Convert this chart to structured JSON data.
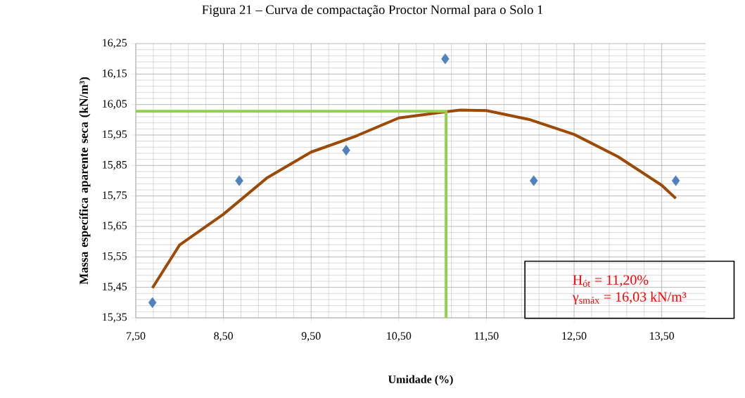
{
  "chart_data": {
    "type": "scatter",
    "title": "Figura 21 – Curva de compactação Proctor Normal para o Solo 1",
    "xlabel": "Umidade (%)",
    "ylabel": "Massa específica aparente seca (kN/m³)",
    "series": [
      {
        "type": "scatter",
        "color": "#4f81bd",
        "marker": "diamond",
        "x": [
          7.69,
          8.68,
          9.9,
          11.03,
          12.04,
          13.66
        ],
        "values": [
          15.4,
          15.8,
          15.9,
          16.2,
          15.8,
          15.8
        ]
      },
      {
        "type": "line",
        "color": "#9c4a06",
        "marker": "none",
        "x": [
          7.69,
          8.0,
          8.5,
          9.0,
          9.5,
          10.0,
          10.5,
          11.0,
          11.2,
          11.5,
          12.0,
          12.5,
          13.0,
          13.5,
          13.66
        ],
        "values": [
          15.448,
          15.589,
          15.69,
          15.81,
          15.894,
          15.945,
          16.006,
          16.025,
          16.032,
          16.03,
          16.0,
          15.952,
          15.879,
          15.785,
          15.742
        ]
      },
      {
        "type": "line",
        "color": "#92d050",
        "marker": "none",
        "x": [
          7.5,
          11.04,
          11.04
        ],
        "values": [
          16.028,
          16.028,
          15.35
        ]
      }
    ],
    "xlim": [
      7.5,
      14.0
    ],
    "ylim": [
      15.35,
      16.25
    ],
    "xticks": [
      {
        "value": 7.5,
        "label": "7,50"
      },
      {
        "value": 8.5,
        "label": "8,50"
      },
      {
        "value": 9.5,
        "label": "9,50"
      },
      {
        "value": 10.5,
        "label": "10,50"
      },
      {
        "value": 11.5,
        "label": "11,50"
      },
      {
        "value": 12.5,
        "label": "12,50"
      },
      {
        "value": 13.5,
        "label": "13,50"
      }
    ],
    "yticks": [
      {
        "value": 15.35,
        "label": "15,35"
      },
      {
        "value": 15.45,
        "label": "15,45"
      },
      {
        "value": 15.55,
        "label": "15,55"
      },
      {
        "value": 15.65,
        "label": "15,65"
      },
      {
        "value": 15.75,
        "label": "15,75"
      },
      {
        "value": 15.85,
        "label": "15,85"
      },
      {
        "value": 15.95,
        "label": "15,95"
      },
      {
        "value": 16.05,
        "label": "16,05"
      },
      {
        "value": 16.15,
        "label": "16,15"
      },
      {
        "value": 16.25,
        "label": "16,25"
      }
    ],
    "grid": true,
    "annotations": [
      "H$_{ót}$ = 11,20%",
      "γ$_{smáx}$ = 16,03 kN/m³"
    ]
  }
}
